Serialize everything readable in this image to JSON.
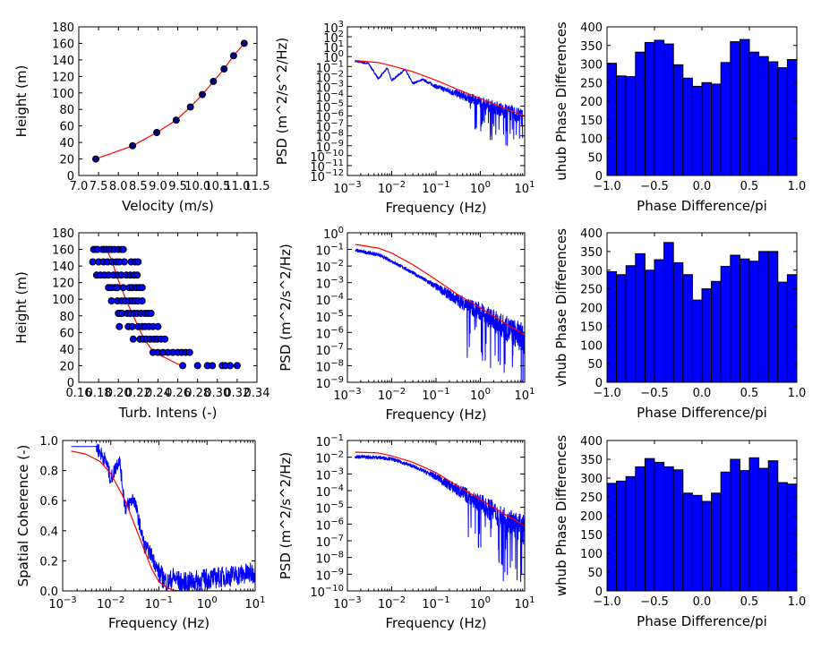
{
  "colors": {
    "data": "#0000ff",
    "fit": "#ff0000",
    "bar": "#0000ff",
    "marker": "#000080"
  },
  "chart_data": [
    {
      "type": "line",
      "xlabel": "Velocity (m/s)",
      "ylabel": "Height (m)",
      "xlim": [
        7.0,
        11.5
      ],
      "ylim": [
        0,
        180
      ],
      "xticks": [
        "7.0",
        "7.5",
        "8.0",
        "8.5",
        "9.0",
        "9.5",
        "10.0",
        "10.5",
        "11.0",
        "11.5"
      ],
      "yticks": [
        "0",
        "20",
        "40",
        "60",
        "80",
        "100",
        "120",
        "140",
        "160",
        "180"
      ],
      "series": [
        {
          "role": "measured points",
          "x": [
            7.43,
            8.36,
            8.97,
            9.46,
            9.82,
            10.12,
            10.4,
            10.67,
            10.91,
            11.18
          ],
          "y": [
            20,
            36,
            52,
            67,
            83,
            98,
            114,
            129,
            145,
            160
          ]
        },
        {
          "role": "fit line",
          "x": [
            7.43,
            8.36,
            8.97,
            9.46,
            9.82,
            10.12,
            10.4,
            10.67,
            10.91,
            11.18
          ],
          "y": [
            20,
            36,
            52,
            67,
            83,
            98,
            114,
            129,
            145,
            160
          ]
        }
      ]
    },
    {
      "type": "line",
      "xlabel": "Frequency (Hz)",
      "ylabel": "PSD (m^2/s^2/Hz)",
      "xscale": "log",
      "yscale": "log",
      "xlim": [
        0.001,
        10
      ],
      "ylim": [
        1e-12,
        1000
      ],
      "xtick_exps": [
        -3,
        -2,
        -1,
        0,
        1
      ],
      "ytick_exps": [
        3,
        2,
        1,
        0,
        -1,
        -2,
        -3,
        -4,
        -5,
        -6,
        -7,
        -8,
        -9,
        -10,
        -11,
        -12
      ],
      "fit": {
        "x": [
          0.0015,
          0.005,
          0.01,
          0.03,
          0.1,
          0.3,
          1,
          3,
          10
        ],
        "y": [
          0.4,
          0.25,
          0.12,
          0.03,
          0.004,
          0.0005,
          6e-05,
          8e-06,
          1e-06
        ]
      },
      "measured": {
        "x": [
          0.0015,
          0.003,
          0.005,
          0.008,
          0.01,
          0.02,
          0.03,
          0.05,
          0.1,
          0.3,
          1,
          3,
          9
        ],
        "y": [
          0.35,
          0.2,
          0.006,
          0.07,
          0.004,
          0.05,
          0.002,
          0.005,
          0.001,
          0.0002,
          3e-05,
          5e-06,
          1e-06
        ]
      }
    },
    {
      "type": "bar",
      "xlabel": "Phase Difference/pi",
      "ylabel": "uhub Phase Differences",
      "xlim": [
        -1.0,
        1.0
      ],
      "ylim": [
        0,
        400
      ],
      "xticks": [
        "−1.0",
        "−0.5",
        "0.0",
        "0.5",
        "1.0"
      ],
      "yticks": [
        "0",
        "50",
        "100",
        "150",
        "200",
        "250",
        "300",
        "350",
        "400"
      ],
      "bins": 20,
      "values": [
        302,
        268,
        266,
        332,
        358,
        364,
        354,
        298,
        262,
        240,
        250,
        246,
        304,
        360,
        366,
        332,
        320,
        306,
        290,
        312
      ]
    },
    {
      "type": "scatter",
      "xlabel": "Turb. Intens (-)",
      "ylabel": "Height (m)",
      "xlim": [
        0.16,
        0.34
      ],
      "ylim": [
        0,
        180
      ],
      "xticks": [
        "0.16",
        "0.18",
        "0.20",
        "0.22",
        "0.24",
        "0.26",
        "0.28",
        "0.30",
        "0.32",
        "0.34"
      ],
      "yticks": [
        "0",
        "20",
        "40",
        "60",
        "80",
        "100",
        "120",
        "140",
        "160",
        "180"
      ],
      "points": [
        {
          "y": 160,
          "x": [
            0.175,
            0.177,
            0.179,
            0.184,
            0.186,
            0.188,
            0.191,
            0.193,
            0.196,
            0.2,
            0.203,
            0.205
          ]
        },
        {
          "y": 145,
          "x": [
            0.174,
            0.18,
            0.185,
            0.189,
            0.194,
            0.198,
            0.201,
            0.206,
            0.213,
            0.217,
            0.22
          ]
        },
        {
          "y": 129,
          "x": [
            0.178,
            0.182,
            0.186,
            0.19,
            0.195,
            0.199,
            0.203,
            0.208,
            0.212,
            0.216,
            0.219
          ]
        },
        {
          "y": 114,
          "x": [
            0.19,
            0.193,
            0.197,
            0.199,
            0.205,
            0.211,
            0.214,
            0.218,
            0.221,
            0.224
          ]
        },
        {
          "y": 98,
          "x": [
            0.193,
            0.199,
            0.203,
            0.207,
            0.211,
            0.214,
            0.217,
            0.22,
            0.224
          ]
        },
        {
          "y": 83,
          "x": [
            0.2,
            0.202,
            0.204,
            0.209,
            0.212,
            0.216,
            0.219,
            0.223,
            0.227,
            0.23,
            0.233
          ]
        },
        {
          "y": 67,
          "x": [
            0.201,
            0.21,
            0.214,
            0.22,
            0.224,
            0.227,
            0.231,
            0.235,
            0.24
          ]
        },
        {
          "y": 52,
          "x": [
            0.215,
            0.222,
            0.225,
            0.228,
            0.232,
            0.236,
            0.239,
            0.243,
            0.247
          ]
        },
        {
          "y": 36,
          "x": [
            0.235,
            0.24,
            0.245,
            0.25,
            0.255,
            0.26,
            0.264,
            0.268,
            0.272
          ]
        },
        {
          "y": 20,
          "x": [
            0.265,
            0.28,
            0.29,
            0.295,
            0.305,
            0.308,
            0.313,
            0.32
          ]
        }
      ],
      "fit": {
        "x": [
          0.188,
          0.194,
          0.198,
          0.203,
          0.208,
          0.214,
          0.22,
          0.226,
          0.236,
          0.25,
          0.26,
          0.266
        ],
        "y": [
          160,
          145,
          129,
          114,
          98,
          83,
          67,
          52,
          36,
          28,
          22,
          20
        ]
      }
    },
    {
      "type": "line",
      "xlabel": "Frequency (Hz)",
      "ylabel": "PSD (m^2/s^2/Hz)",
      "xscale": "log",
      "yscale": "log",
      "xlim": [
        0.001,
        10
      ],
      "ylim": [
        1e-09,
        1
      ],
      "xtick_exps": [
        -3,
        -2,
        -1,
        0,
        1
      ],
      "ytick_exps": [
        0,
        -1,
        -2,
        -3,
        -4,
        -5,
        -6,
        -7,
        -8,
        -9
      ],
      "fit": {
        "x": [
          0.0015,
          0.005,
          0.01,
          0.03,
          0.1,
          0.3,
          1,
          3,
          10
        ],
        "y": [
          0.2,
          0.12,
          0.06,
          0.012,
          0.0015,
          0.0002,
          3e-05,
          5e-06,
          7e-07
        ]
      },
      "measured": {
        "x": [
          0.0015,
          0.005,
          0.01,
          0.03,
          0.1,
          0.3,
          1,
          3,
          10
        ],
        "y": [
          0.09,
          0.05,
          0.02,
          0.004,
          0.0006,
          0.0001,
          2e-05,
          3e-06,
          5e-07
        ]
      }
    },
    {
      "type": "bar",
      "xlabel": "Phase Difference/pi",
      "ylabel": "vhub Phase Differences",
      "xlim": [
        -1.0,
        1.0
      ],
      "ylim": [
        0,
        400
      ],
      "xticks": [
        "−1.0",
        "−0.5",
        "0.0",
        "0.5",
        "1.0"
      ],
      "yticks": [
        "0",
        "50",
        "100",
        "150",
        "200",
        "250",
        "300",
        "350",
        "400"
      ],
      "bins": 20,
      "values": [
        296,
        288,
        312,
        344,
        300,
        328,
        374,
        320,
        288,
        220,
        250,
        270,
        310,
        340,
        330,
        324,
        350,
        350,
        268,
        288
      ]
    },
    {
      "type": "line",
      "xlabel": "Frequency (Hz)",
      "ylabel": "Spatial Coherence (-)",
      "xscale": "log",
      "xlim": [
        0.001,
        10
      ],
      "ylim": [
        0.0,
        1.0
      ],
      "xtick_exps": [
        -3,
        -2,
        -1,
        0,
        1
      ],
      "yticks": [
        "0.0",
        "0.2",
        "0.4",
        "0.6",
        "0.8",
        "1.0"
      ],
      "fit": {
        "x": [
          0.0015,
          0.003,
          0.006,
          0.01,
          0.02,
          0.04,
          0.07,
          0.1,
          0.15,
          0.2,
          0.3,
          1,
          10
        ],
        "y": [
          0.93,
          0.91,
          0.86,
          0.78,
          0.6,
          0.35,
          0.15,
          0.06,
          0.02,
          0.005,
          0.0,
          0.0,
          0.0
        ]
      },
      "measured": {
        "x": [
          0.0015,
          0.003,
          0.005,
          0.008,
          0.01,
          0.015,
          0.02,
          0.03,
          0.05,
          0.07,
          0.1,
          0.15,
          0.2,
          0.3,
          1,
          3,
          10
        ],
        "y": [
          0.96,
          0.96,
          0.96,
          0.86,
          0.74,
          0.88,
          0.55,
          0.62,
          0.3,
          0.24,
          0.12,
          0.05,
          0.09,
          0.05,
          0.08,
          0.1,
          0.12
        ]
      }
    },
    {
      "type": "line",
      "xlabel": "Frequency (Hz)",
      "ylabel": "PSD (m^2/s^2/Hz)",
      "xscale": "log",
      "yscale": "log",
      "xlim": [
        0.001,
        10
      ],
      "ylim": [
        1e-10,
        0.1
      ],
      "xtick_exps": [
        -3,
        -2,
        -1,
        0,
        1
      ],
      "ytick_exps": [
        -1,
        -2,
        -3,
        -4,
        -5,
        -6,
        -7,
        -8,
        -9,
        -10
      ],
      "fit": {
        "x": [
          0.0015,
          0.005,
          0.01,
          0.03,
          0.1,
          0.3,
          1,
          3,
          10
        ],
        "y": [
          0.02,
          0.018,
          0.012,
          0.005,
          0.0012,
          0.0002,
          3e-05,
          5e-06,
          8e-07
        ]
      },
      "measured": {
        "x": [
          0.0015,
          0.005,
          0.01,
          0.03,
          0.1,
          0.3,
          1,
          3,
          10
        ],
        "y": [
          0.011,
          0.01,
          0.008,
          0.003,
          0.0007,
          0.00012,
          2e-05,
          3e-06,
          5e-07
        ]
      }
    },
    {
      "type": "bar",
      "xlabel": "Phase Difference/pi",
      "ylabel": "whub Phase Differences",
      "xlim": [
        -1.0,
        1.0
      ],
      "ylim": [
        0,
        400
      ],
      "xticks": [
        "−1.0",
        "−0.5",
        "0.0",
        "0.5",
        "1.0"
      ],
      "yticks": [
        "0",
        "50",
        "100",
        "150",
        "200",
        "250",
        "300",
        "350",
        "400"
      ],
      "bins": 20,
      "values": [
        286,
        292,
        304,
        330,
        352,
        342,
        330,
        322,
        260,
        254,
        238,
        260,
        316,
        350,
        320,
        354,
        326,
        346,
        288,
        284
      ]
    }
  ]
}
